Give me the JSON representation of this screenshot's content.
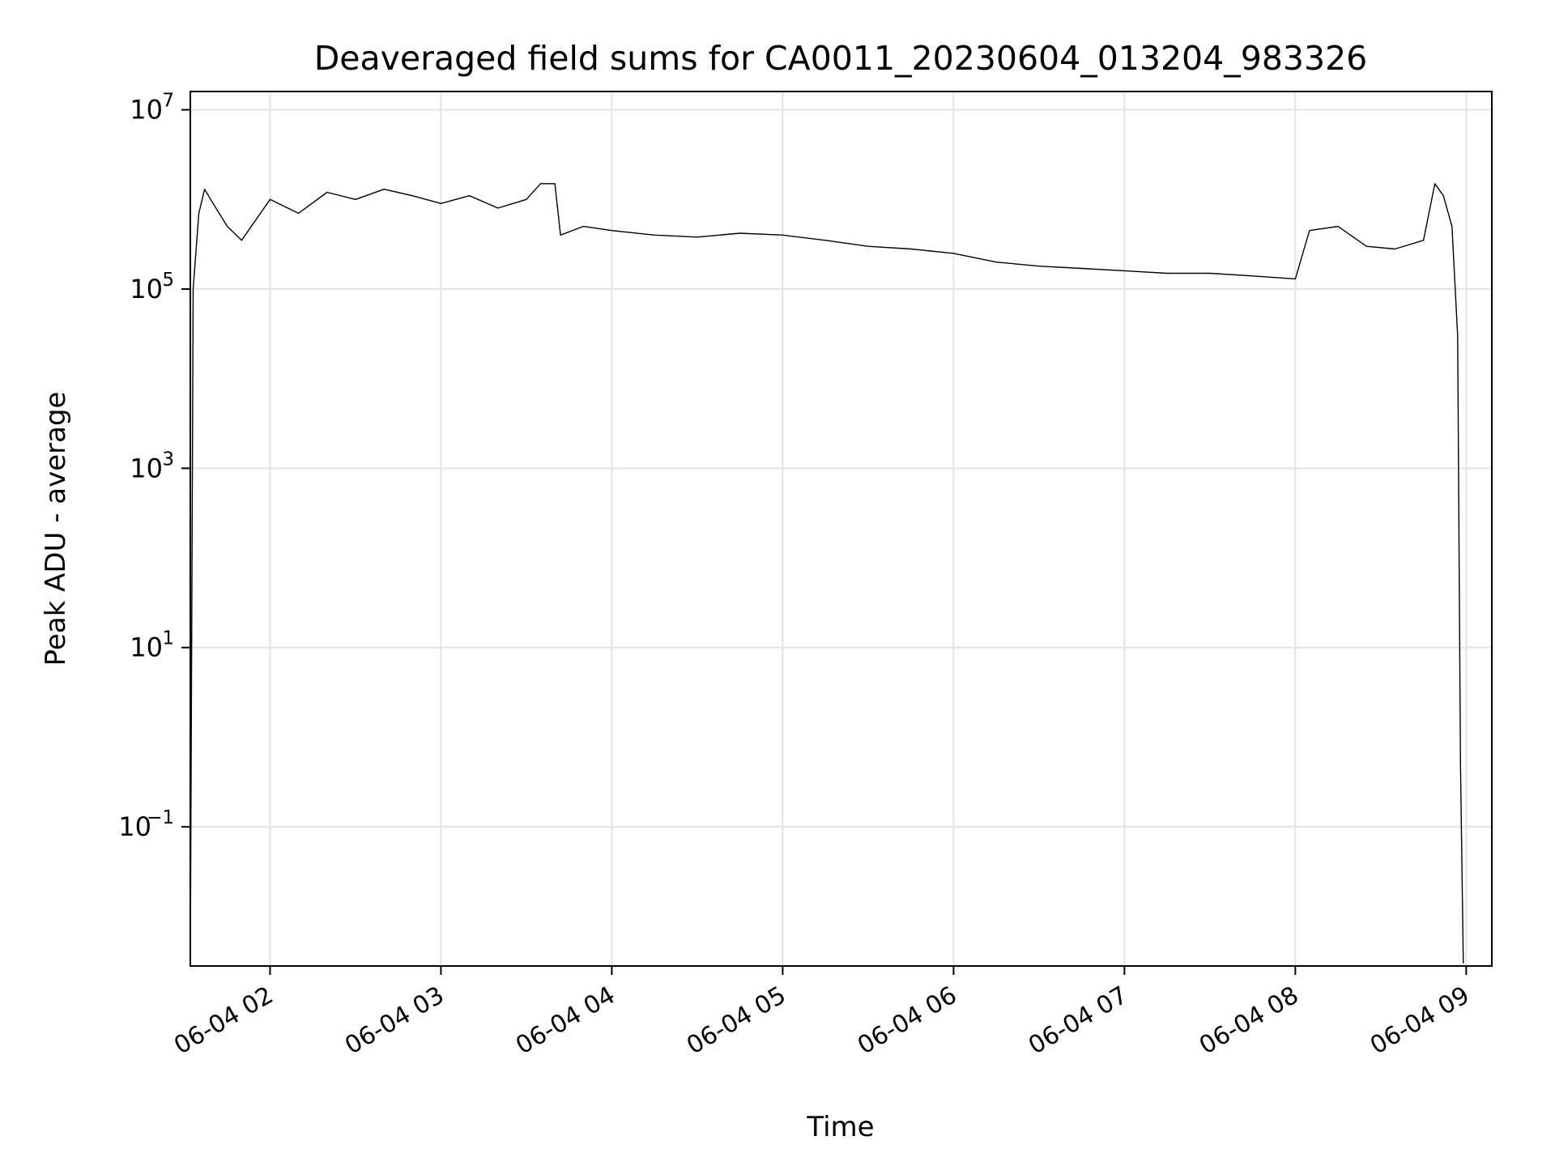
{
  "chart_data": {
    "type": "line",
    "title": "Deaveraged field sums for CA0011_20230604_013204_983326",
    "xlabel": "Time",
    "ylabel": "Peak ADU - average",
    "x_ticks": [
      "06-04 02",
      "06-04 03",
      "06-04 04",
      "06-04 05",
      "06-04 06",
      "06-04 07",
      "06-04 08",
      "06-04 09"
    ],
    "y_ticks": [
      {
        "base": "10",
        "exp": "7"
      },
      {
        "base": "10",
        "exp": "5"
      },
      {
        "base": "10",
        "exp": "3"
      },
      {
        "base": "10",
        "exp": "1"
      },
      {
        "base": "10",
        "exp": "−1"
      }
    ],
    "y_scale": "log",
    "xlim": [
      "2023-06-04 01:32",
      "2023-06-04 09:09"
    ],
    "ylim": [
      0.0028,
      16000000
    ],
    "grid": true,
    "line_color": "#000000",
    "series": [
      {
        "x": [
          "2023-06-04 01:32",
          "2023-06-04 01:33",
          "2023-06-04 01:35",
          "2023-06-04 01:37",
          "2023-06-04 01:40",
          "2023-06-04 01:45",
          "2023-06-04 01:50",
          "2023-06-04 02:00",
          "2023-06-04 02:10",
          "2023-06-04 02:20",
          "2023-06-04 02:30",
          "2023-06-04 02:40",
          "2023-06-04 02:50",
          "2023-06-04 03:00",
          "2023-06-04 03:10",
          "2023-06-04 03:20",
          "2023-06-04 03:30",
          "2023-06-04 03:35",
          "2023-06-04 03:40",
          "2023-06-04 03:42",
          "2023-06-04 03:50",
          "2023-06-04 04:00",
          "2023-06-04 04:15",
          "2023-06-04 04:30",
          "2023-06-04 04:45",
          "2023-06-04 05:00",
          "2023-06-04 05:15",
          "2023-06-04 05:30",
          "2023-06-04 05:45",
          "2023-06-04 06:00",
          "2023-06-04 06:15",
          "2023-06-04 06:30",
          "2023-06-04 06:45",
          "2023-06-04 07:00",
          "2023-06-04 07:15",
          "2023-06-04 07:30",
          "2023-06-04 07:45",
          "2023-06-04 08:00",
          "2023-06-04 08:05",
          "2023-06-04 08:15",
          "2023-06-04 08:25",
          "2023-06-04 08:35",
          "2023-06-04 08:45",
          "2023-06-04 08:49",
          "2023-06-04 08:52",
          "2023-06-04 08:55",
          "2023-06-04 08:57",
          "2023-06-04 08:58",
          "2023-06-04 08:59"
        ],
        "values": [
          0.003,
          100000,
          700000,
          1300000,
          900000,
          500000,
          350000,
          1000000,
          700000,
          1200000,
          1000000,
          1300000,
          1100000,
          900000,
          1100000,
          800000,
          1000000,
          1500000,
          1500000,
          400000,
          500000,
          450000,
          400000,
          380000,
          420000,
          400000,
          350000,
          300000,
          280000,
          250000,
          200000,
          180000,
          170000,
          160000,
          150000,
          150000,
          140000,
          130000,
          450000,
          500000,
          300000,
          280000,
          350000,
          1500000,
          1100000,
          500000,
          30000,
          0.5,
          0.003
        ]
      }
    ]
  }
}
